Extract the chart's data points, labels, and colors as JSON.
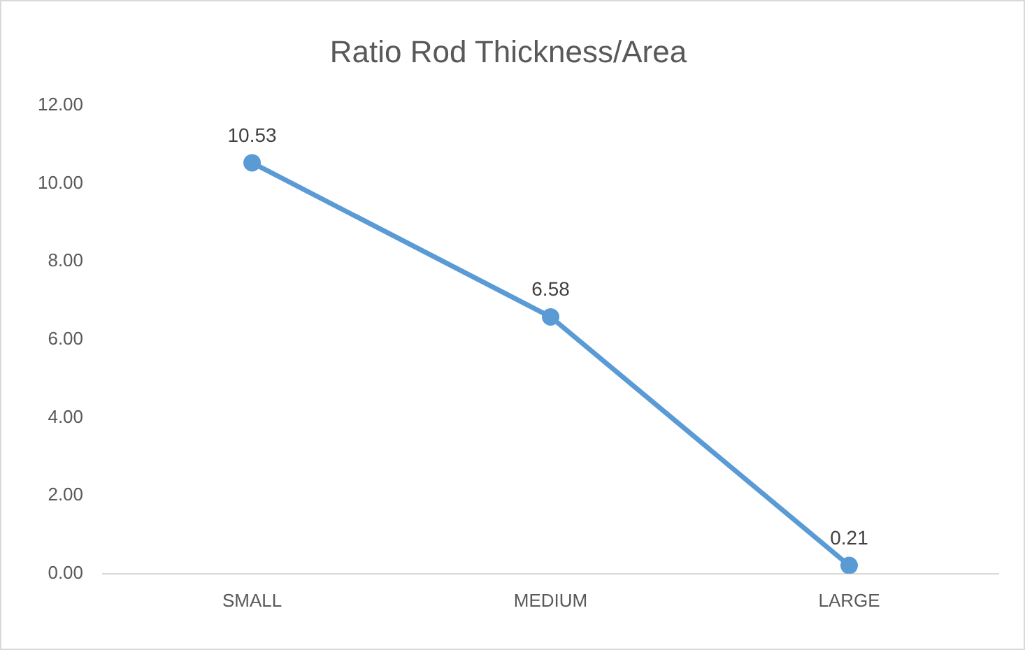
{
  "chart_data": {
    "type": "line",
    "title": "Ratio Rod Thickness/Area",
    "categories": [
      "SMALL",
      "MEDIUM",
      "LARGE"
    ],
    "series": [
      {
        "color": "#5b9bd5",
        "values": [
          10.53,
          6.58,
          0.21
        ]
      }
    ],
    "ylim": [
      0,
      12
    ],
    "yticks": [
      {
        "value": 0,
        "label": "0.00"
      },
      {
        "value": 2,
        "label": "2.00"
      },
      {
        "value": 4,
        "label": "4.00"
      },
      {
        "value": 6,
        "label": "6.00"
      },
      {
        "value": 8,
        "label": "8.00"
      },
      {
        "value": 10,
        "label": "10.00"
      },
      {
        "value": 12,
        "label": "12.00"
      }
    ],
    "grid": false,
    "legend": false,
    "marker": "circle",
    "line_style": "solid",
    "data_labels": true
  }
}
